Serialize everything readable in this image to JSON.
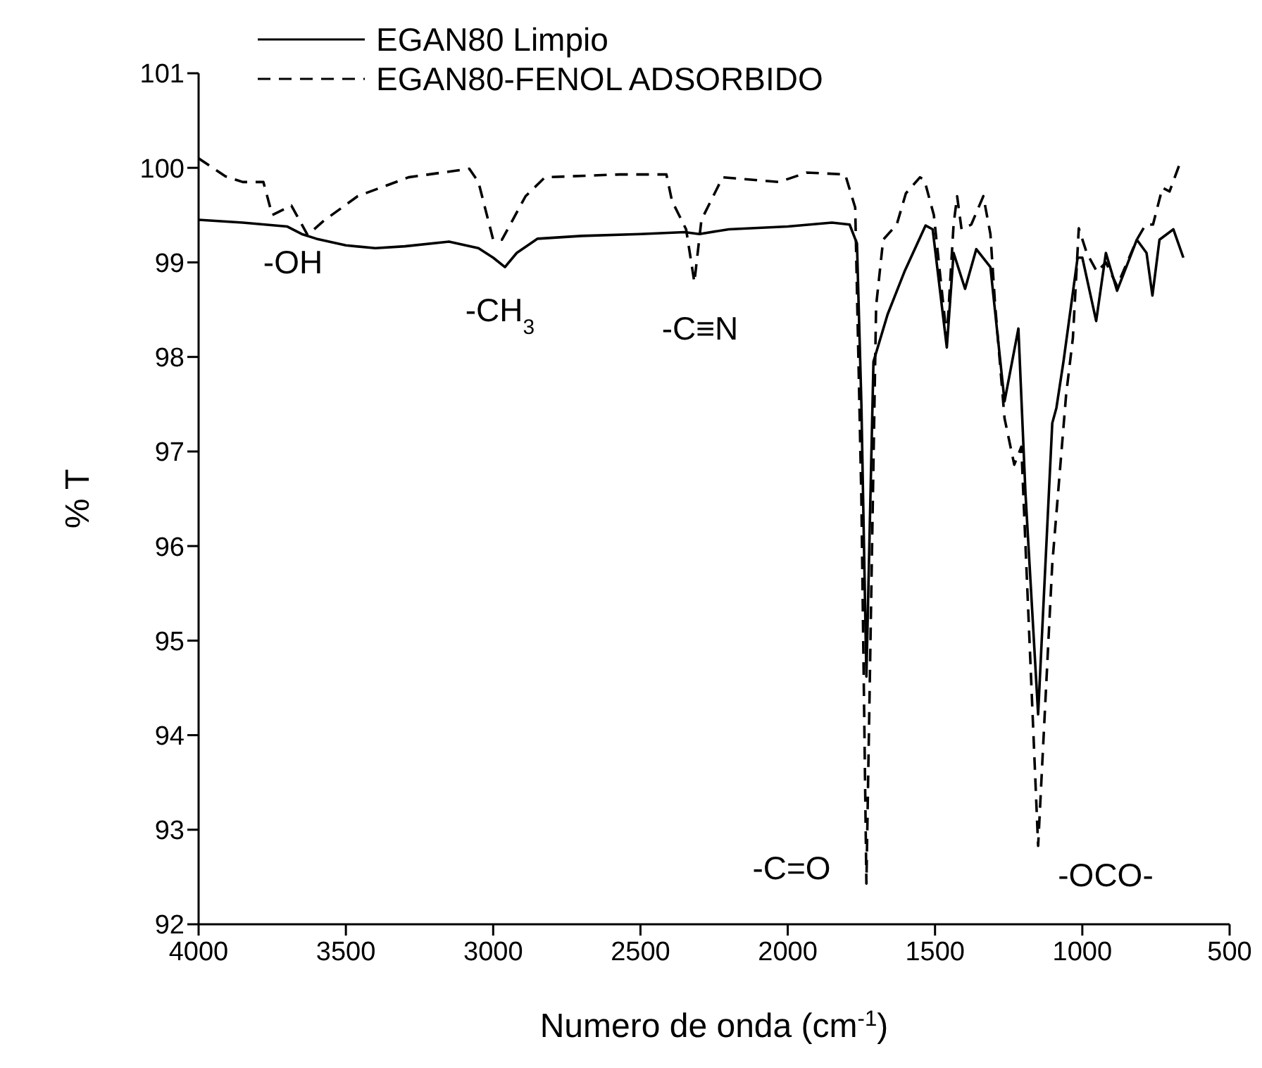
{
  "chart_data": {
    "type": "line",
    "xlabel": "Numero de onda (cm$^{-1}$)",
    "ylabel": "% T",
    "xlim": [
      4000,
      500
    ],
    "xticks": [
      4000,
      3500,
      3000,
      2500,
      2000,
      1500,
      1000,
      500
    ],
    "ylim": [
      92,
      101
    ],
    "yticks": [
      92,
      93,
      94,
      95,
      96,
      97,
      98,
      99,
      100,
      101
    ],
    "legend": "top left",
    "grid": false,
    "marker": "none",
    "series": [
      {
        "name": "EGAN80 Limpio",
        "color": "#000000",
        "line_style": "solid",
        "x": [
          4000,
          3850,
          3700,
          3650,
          3600,
          3500,
          3400,
          3300,
          3150,
          3050,
          3000,
          2960,
          2920,
          2850,
          2700,
          2500,
          2350,
          2300,
          2200,
          2000,
          1850,
          1790,
          1765,
          1750,
          1733,
          1709,
          1661,
          1604,
          1532,
          1508,
          1460,
          1437,
          1398,
          1360,
          1312,
          1264,
          1217,
          1193,
          1150,
          1102,
          1088,
          1064,
          1016,
          1000,
          953,
          920,
          882,
          815,
          782,
          762,
          738,
          691,
          657
        ],
        "values": [
          99.45,
          99.42,
          99.38,
          99.3,
          99.25,
          99.18,
          99.15,
          99.17,
          99.22,
          99.15,
          99.05,
          98.95,
          99.1,
          99.25,
          99.28,
          99.3,
          99.32,
          99.3,
          99.35,
          99.38,
          99.42,
          99.4,
          99.2,
          97.5,
          94.62,
          97.95,
          98.45,
          98.9,
          99.39,
          99.35,
          98.1,
          99.1,
          98.72,
          99.14,
          98.95,
          97.53,
          98.3,
          96.56,
          94.22,
          97.3,
          97.46,
          97.95,
          99.05,
          99.05,
          98.38,
          99.1,
          98.7,
          99.24,
          99.1,
          98.65,
          99.24,
          99.35,
          99.05
        ]
      },
      {
        "name": "EGAN80-FENOL ADSORBIDO",
        "color": "#000000",
        "line_style": "dashed",
        "x": [
          4000,
          3909,
          3850,
          3780,
          3750,
          3685,
          3630,
          3575,
          3460,
          3287,
          3081,
          3050,
          3000,
          2970,
          2890,
          2824,
          2570,
          2412,
          2393,
          2345,
          2317,
          2293,
          2253,
          2221,
          2030,
          1935,
          1805,
          1771,
          1750,
          1733,
          1700,
          1676,
          1630,
          1599,
          1551,
          1536,
          1504,
          1460,
          1437,
          1425,
          1410,
          1377,
          1336,
          1312,
          1296,
          1264,
          1231,
          1207,
          1150,
          1102,
          1055,
          1032,
          1012,
          985,
          950,
          920,
          882,
          815,
          785,
          760,
          728,
          704,
          672,
          657
        ],
        "values": [
          100.1,
          99.91,
          99.85,
          99.85,
          99.5,
          99.6,
          99.29,
          99.44,
          99.7,
          99.9,
          99.99,
          99.85,
          99.24,
          99.24,
          99.7,
          99.9,
          99.93,
          99.93,
          99.65,
          99.35,
          98.79,
          99.45,
          99.7,
          99.9,
          99.85,
          99.95,
          99.93,
          99.58,
          96.5,
          92.43,
          98.54,
          99.24,
          99.4,
          99.73,
          99.9,
          99.87,
          99.5,
          98.2,
          99.4,
          99.7,
          99.35,
          99.4,
          99.7,
          99.3,
          98.55,
          97.35,
          96.86,
          97.05,
          92.83,
          95.81,
          97.6,
          98.2,
          99.36,
          99.1,
          98.9,
          99.0,
          98.75,
          99.24,
          99.4,
          99.4,
          99.79,
          99.75,
          100.02,
          100.05
        ]
      }
    ],
    "annotations": [
      "-OH",
      "-CH$_{3}$",
      "-C≡N",
      "-C=O",
      "-OCO-"
    ]
  }
}
